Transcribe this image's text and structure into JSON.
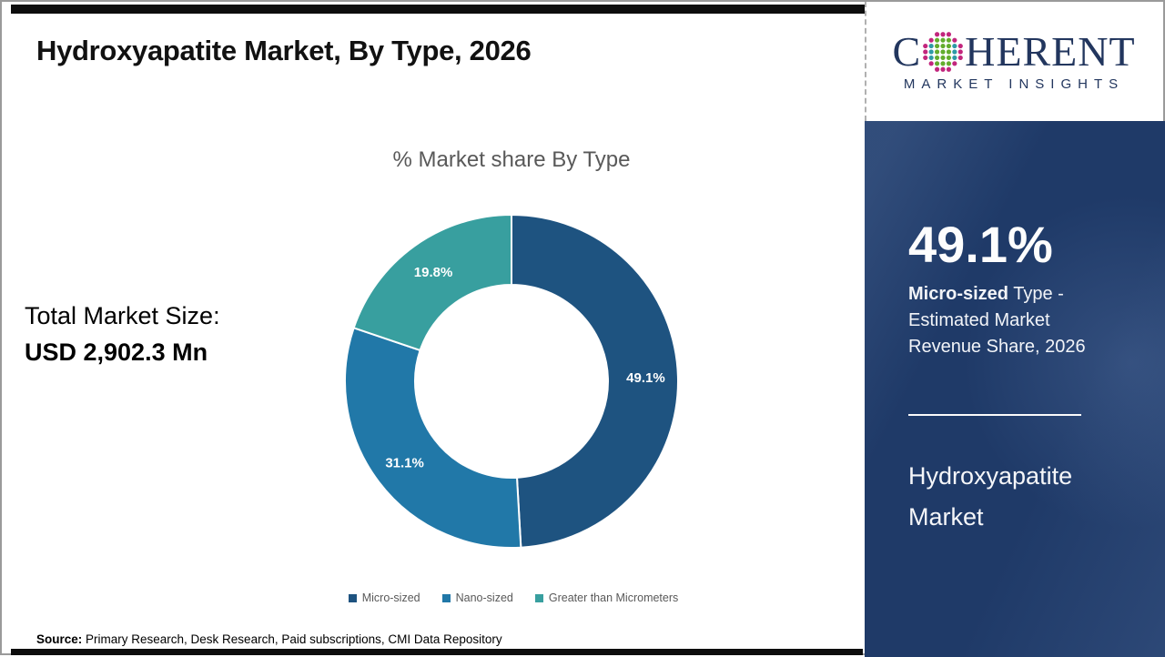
{
  "page": {
    "title": "Hydroxyapatite Market, By Type, 2026"
  },
  "logo": {
    "name_prefix": "C",
    "name_suffix": "HERENT",
    "tagline": "MARKET INSIGHTS"
  },
  "chart_data": {
    "type": "pie",
    "subtype": "donut",
    "title": "% Market share By Type",
    "categories": [
      "Micro-sized",
      "Nano-sized",
      "Greater than Micrometers"
    ],
    "values": [
      49.1,
      31.1,
      19.8
    ],
    "labels": [
      "49.1%",
      "31.1%",
      "19.8%"
    ],
    "colors": [
      "#1e5380",
      "#2178a8",
      "#389f9f"
    ],
    "start_angle_deg": 0,
    "direction": "clockwise",
    "inner_radius_ratio": 0.58,
    "legend_position": "bottom"
  },
  "stats": {
    "total_label": "Total Market Size:",
    "total_value": "USD 2,902.3 Mn"
  },
  "sidebar": {
    "stat_value": "49.1%",
    "desc_bold": "Micro-sized",
    "desc_line1_rest": " Type -",
    "desc_line2": "Estimated Market",
    "desc_line3": "Revenue Share, 2026",
    "market_line1": "Hydroxyapatite",
    "market_line2": "Market"
  },
  "footer": {
    "source_label": "Source:",
    "source_text": " Primary Research, Desk Research, Paid subscriptions, CMI Data Repository"
  }
}
